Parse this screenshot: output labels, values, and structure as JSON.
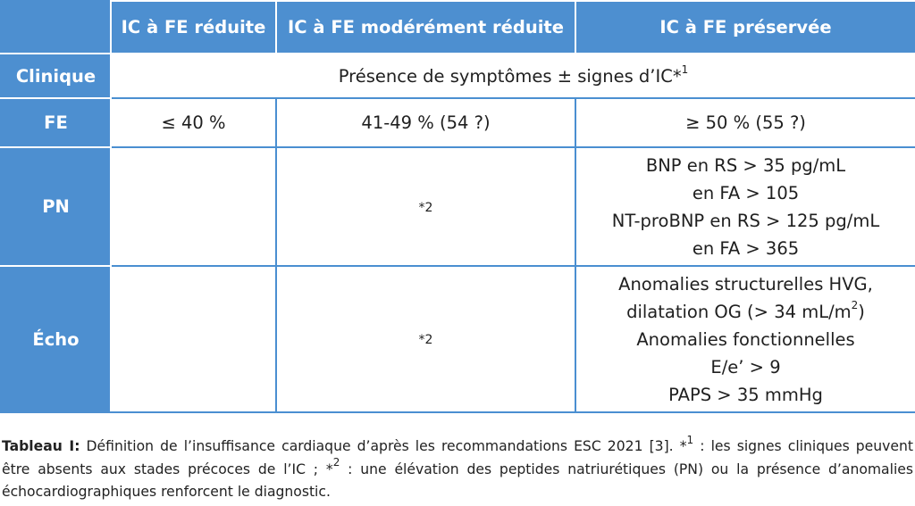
{
  "table": {
    "headers": [
      "",
      "IC à FE réduite",
      "IC à FE modérément réduite",
      "IC à FE préservée"
    ],
    "clinique": {
      "label": "Clinique",
      "value": "Présence de symptômes ± signes d’IC*",
      "value_sup": "1"
    },
    "fe": {
      "label": "FE",
      "reduite": "≤ 40 %",
      "moderee": "41-49 % (54 ?)",
      "preservee": "≥ 50 % (55 ?)"
    },
    "pn": {
      "label": "PN",
      "reduite": "",
      "moderee": "*",
      "moderee_sup": "2",
      "preservee_lines": [
        "BNP en RS > 35 pg/mL",
        "en FA > 105",
        "NT-proBNP en RS > 125 pg/mL",
        "en FA > 365"
      ]
    },
    "echo": {
      "label": "Écho",
      "reduite": "",
      "moderee": "*",
      "moderee_sup": "2",
      "preservee_line1": "Anomalies structurelles HVG,",
      "preservee_line2_before": "dilatation OG (> 34 mL/m",
      "preservee_line2_sup": "2",
      "preservee_line2_after": ")",
      "preservee_line3": "Anomalies fonctionnelles",
      "preservee_line4": "E/e’ > 9",
      "preservee_line5": "PAPS > 35 mmHg"
    }
  },
  "caption": {
    "label": "Tableau I:",
    "part1": " Définition de l’insuffisance cardiaque d’après les recommandations ESC 2021 [3]. *",
    "sup1": "1",
    "part2": " : les signes cliniques peuvent être absents aux stades précoces de l’IC ; *",
    "sup2": "2",
    "part3": " : une élévation des peptides natriurétiques (PN) ou la présence d’anomalies échocardiographiques renforcent le diagnostic."
  },
  "colors": {
    "header_blue": "#4d8fd0",
    "border_blue": "#4a8fd1"
  }
}
